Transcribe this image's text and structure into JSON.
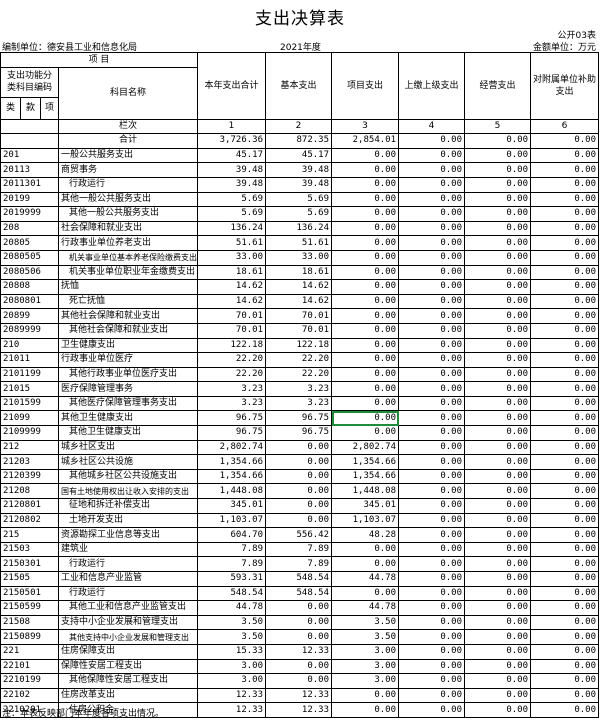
{
  "header": {
    "title": "支出决算表",
    "form_no": "公开03表",
    "unit_org": "编制单位：德安县工业和信息化局",
    "year": "2021年度",
    "amount_unit": "金额单位：万元"
  },
  "table": {
    "project_label": "项    目",
    "code_label": "支出功能分类科目编码",
    "name_label": "科目名称",
    "columns": [
      "本年支出合计",
      "基本支出",
      "项目支出",
      "上缴上级支出",
      "经营支出",
      "对附属单位补助支出"
    ],
    "level_labels": [
      "类",
      "款",
      "项"
    ],
    "index_label": "栏次",
    "column_numbers": [
      "1",
      "2",
      "3",
      "4",
      "5",
      "6"
    ],
    "total_label": "合计",
    "total_values": [
      "3,726.36",
      "872.35",
      "2,854.01",
      "0.00",
      "0.00",
      "0.00"
    ],
    "rows": [
      [
        "201",
        "一般公共服务支出",
        "45.17",
        "45.17",
        "0.00",
        "0.00",
        "0.00",
        "0.00"
      ],
      [
        "20113",
        "商贸事务",
        "39.48",
        "39.48",
        "0.00",
        "0.00",
        "0.00",
        "0.00"
      ],
      [
        "2011301",
        "行政运行",
        "39.48",
        "39.48",
        "0.00",
        "0.00",
        "0.00",
        "0.00"
      ],
      [
        "20199",
        "其他一般公共服务支出",
        "5.69",
        "5.69",
        "0.00",
        "0.00",
        "0.00",
        "0.00"
      ],
      [
        "2019999",
        "其他一般公共服务支出",
        "5.69",
        "5.69",
        "0.00",
        "0.00",
        "0.00",
        "0.00"
      ],
      [
        "208",
        "社会保障和就业支出",
        "136.24",
        "136.24",
        "0.00",
        "0.00",
        "0.00",
        "0.00"
      ],
      [
        "20805",
        "行政事业单位养老支出",
        "51.61",
        "51.61",
        "0.00",
        "0.00",
        "0.00",
        "0.00"
      ],
      [
        "2080505",
        "机关事业单位基本养老保险缴费支出",
        "33.00",
        "33.00",
        "0.00",
        "0.00",
        "0.00",
        "0.00"
      ],
      [
        "2080506",
        "机关事业单位职业年金缴费支出",
        "18.61",
        "18.61",
        "0.00",
        "0.00",
        "0.00",
        "0.00"
      ],
      [
        "20808",
        "抚恤",
        "14.62",
        "14.62",
        "0.00",
        "0.00",
        "0.00",
        "0.00"
      ],
      [
        "2080801",
        "死亡抚恤",
        "14.62",
        "14.62",
        "0.00",
        "0.00",
        "0.00",
        "0.00"
      ],
      [
        "20899",
        "其他社会保障和就业支出",
        "70.01",
        "70.01",
        "0.00",
        "0.00",
        "0.00",
        "0.00"
      ],
      [
        "2089999",
        "其他社会保障和就业支出",
        "70.01",
        "70.01",
        "0.00",
        "0.00",
        "0.00",
        "0.00"
      ],
      [
        "210",
        "卫生健康支出",
        "122.18",
        "122.18",
        "0.00",
        "0.00",
        "0.00",
        "0.00"
      ],
      [
        "21011",
        "行政事业单位医疗",
        "22.20",
        "22.20",
        "0.00",
        "0.00",
        "0.00",
        "0.00"
      ],
      [
        "2101199",
        "其他行政事业单位医疗支出",
        "22.20",
        "22.20",
        "0.00",
        "0.00",
        "0.00",
        "0.00"
      ],
      [
        "21015",
        "医疗保障管理事务",
        "3.23",
        "3.23",
        "0.00",
        "0.00",
        "0.00",
        "0.00"
      ],
      [
        "2101599",
        "其他医疗保障管理事务支出",
        "3.23",
        "3.23",
        "0.00",
        "0.00",
        "0.00",
        "0.00"
      ],
      [
        "21099",
        "其他卫生健康支出",
        "96.75",
        "96.75",
        "0.00",
        "0.00",
        "0.00",
        "0.00"
      ],
      [
        "2109999",
        "其他卫生健康支出",
        "96.75",
        "96.75",
        "0.00",
        "0.00",
        "0.00",
        "0.00"
      ],
      [
        "212",
        "城乡社区支出",
        "2,802.74",
        "0.00",
        "2,802.74",
        "0.00",
        "0.00",
        "0.00"
      ],
      [
        "21203",
        "城乡社区公共设施",
        "1,354.66",
        "0.00",
        "1,354.66",
        "0.00",
        "0.00",
        "0.00"
      ],
      [
        "2120399",
        "其他城乡社区公共设施支出",
        "1,354.66",
        "0.00",
        "1,354.66",
        "0.00",
        "0.00",
        "0.00"
      ],
      [
        "21208",
        "国有土地使用权出让收入安排的支出",
        "1,448.08",
        "0.00",
        "1,448.08",
        "0.00",
        "0.00",
        "0.00"
      ],
      [
        "2120801",
        "征地和拆迁补偿支出",
        "345.01",
        "0.00",
        "345.01",
        "0.00",
        "0.00",
        "0.00"
      ],
      [
        "2120802",
        "土地开发支出",
        "1,103.07",
        "0.00",
        "1,103.07",
        "0.00",
        "0.00",
        "0.00"
      ],
      [
        "215",
        "资源勘探工业信息等支出",
        "604.70",
        "556.42",
        "48.28",
        "0.00",
        "0.00",
        "0.00"
      ],
      [
        "21503",
        "建筑业",
        "7.89",
        "7.89",
        "0.00",
        "0.00",
        "0.00",
        "0.00"
      ],
      [
        "2150301",
        "行政运行",
        "7.89",
        "7.89",
        "0.00",
        "0.00",
        "0.00",
        "0.00"
      ],
      [
        "21505",
        "工业和信息产业监管",
        "593.31",
        "548.54",
        "44.78",
        "0.00",
        "0.00",
        "0.00"
      ],
      [
        "2150501",
        "行政运行",
        "548.54",
        "548.54",
        "0.00",
        "0.00",
        "0.00",
        "0.00"
      ],
      [
        "2150599",
        "其他工业和信息产业监管支出",
        "44.78",
        "0.00",
        "44.78",
        "0.00",
        "0.00",
        "0.00"
      ],
      [
        "21508",
        "支持中小企业发展和管理支出",
        "3.50",
        "0.00",
        "3.50",
        "0.00",
        "0.00",
        "0.00"
      ],
      [
        "2150899",
        "其他支持中小企业发展和管理支出",
        "3.50",
        "0.00",
        "3.50",
        "0.00",
        "0.00",
        "0.00"
      ],
      [
        "221",
        "住房保障支出",
        "15.33",
        "12.33",
        "3.00",
        "0.00",
        "0.00",
        "0.00"
      ],
      [
        "22101",
        "保障性安居工程支出",
        "3.00",
        "0.00",
        "3.00",
        "0.00",
        "0.00",
        "0.00"
      ],
      [
        "2210199",
        "其他保障性安居工程支出",
        "3.00",
        "0.00",
        "3.00",
        "0.00",
        "0.00",
        "0.00"
      ],
      [
        "22102",
        "住房改革支出",
        "12.33",
        "12.33",
        "0.00",
        "0.00",
        "0.00",
        "0.00"
      ],
      [
        "2210201",
        "住房公积金",
        "12.33",
        "12.33",
        "0.00",
        "0.00",
        "0.00",
        "0.00"
      ]
    ]
  },
  "footer": {
    "note": "注：本表反映部门本年度各项支出情况。"
  }
}
